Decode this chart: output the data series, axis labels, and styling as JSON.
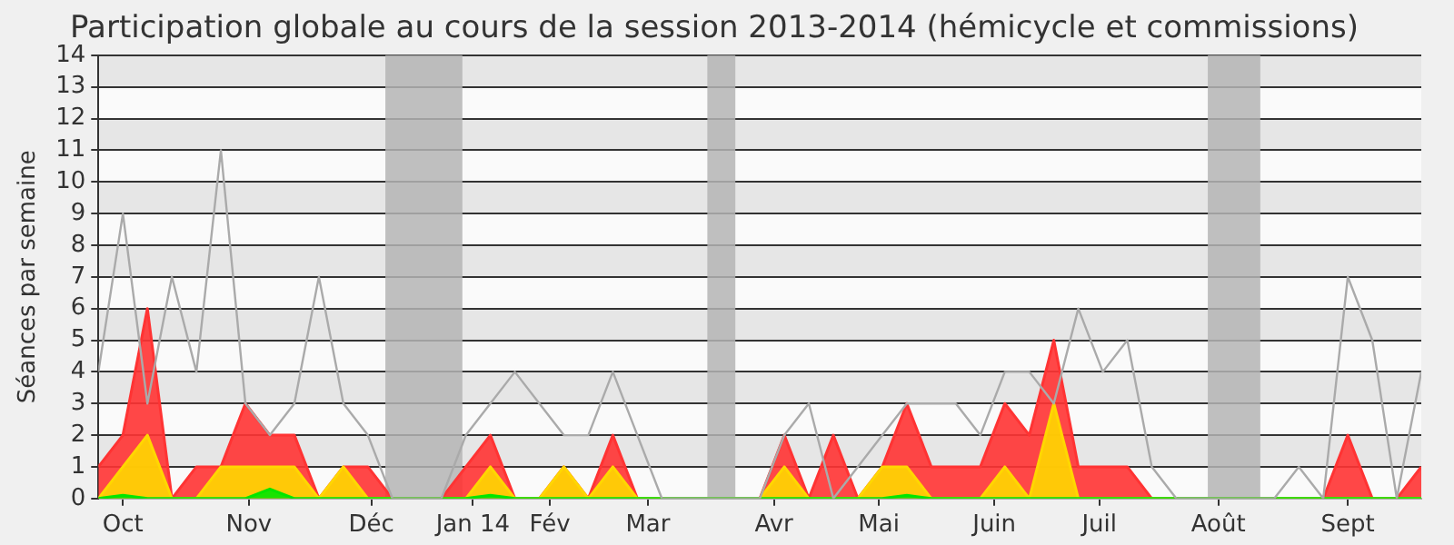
{
  "chart_data": {
    "type": "area",
    "title": "Participation globale au cours de la session 2013-2014 (hémicycle et commissions)",
    "ylabel": "Séances par semaine",
    "x": [
      "2013-09-30",
      "2013-10-07",
      "2013-10-14",
      "2013-10-21",
      "2013-10-28",
      "2013-11-04",
      "2013-11-11",
      "2013-11-18",
      "2013-11-25",
      "2013-12-02",
      "2013-12-09",
      "2013-12-16",
      "2013-12-23",
      "2013-12-30",
      "2014-01-06",
      "2014-01-13",
      "2014-01-20",
      "2014-01-27",
      "2014-02-03",
      "2014-02-10",
      "2014-02-17",
      "2014-02-24",
      "2014-03-03",
      "2014-03-10",
      "2014-03-17",
      "2014-03-24",
      "2014-03-31",
      "2014-04-07",
      "2014-04-14",
      "2014-04-21",
      "2014-04-28",
      "2014-05-05",
      "2014-05-12",
      "2014-05-19",
      "2014-05-26",
      "2014-06-02",
      "2014-06-09",
      "2014-06-16",
      "2014-06-23",
      "2014-06-30",
      "2014-07-07",
      "2014-07-14",
      "2014-07-21",
      "2014-07-28",
      "2014-08-04",
      "2014-08-11",
      "2014-08-18",
      "2014-08-25",
      "2014-09-01",
      "2014-09-08",
      "2014-09-15",
      "2014-09-22",
      "2014-09-29",
      "2014-10-06",
      "2014-10-13"
    ],
    "xlim": [
      "2013-09-30",
      "2014-10-13"
    ],
    "xticks": [
      {
        "value": "2013-10-07",
        "label": "Oct"
      },
      {
        "value": "2013-11-12",
        "label": "Nov"
      },
      {
        "value": "2013-12-17",
        "label": "Déc"
      },
      {
        "value": "2014-01-15",
        "label": "Jan 14"
      },
      {
        "value": "2014-02-06",
        "label": "Fév"
      },
      {
        "value": "2014-03-06",
        "label": "Mar"
      },
      {
        "value": "2014-04-11",
        "label": "Avr"
      },
      {
        "value": "2014-05-11",
        "label": "Mai"
      },
      {
        "value": "2014-06-13",
        "label": "Juin"
      },
      {
        "value": "2014-07-13",
        "label": "Juil"
      },
      {
        "value": "2014-08-16",
        "label": "Août"
      },
      {
        "value": "2014-09-22",
        "label": "Sept"
      }
    ],
    "ylim": [
      0,
      14
    ],
    "yticks": [
      0,
      1,
      2,
      3,
      4,
      5,
      6,
      7,
      8,
      9,
      10,
      11,
      12,
      13,
      14
    ],
    "grid": "y",
    "legend": false,
    "marker": "none",
    "bands": [
      {
        "axis": "x",
        "from": "2013-12-21",
        "to": "2014-01-12",
        "color": "#b4b4b4"
      },
      {
        "axis": "x",
        "from": "2014-03-23",
        "to": "2014-03-31",
        "color": "#b4b4b4"
      },
      {
        "axis": "x",
        "from": "2014-08-13",
        "to": "2014-08-28",
        "color": "#b4b4b4"
      }
    ],
    "series": [
      {
        "color": "#ff3333",
        "values": [
          1,
          2,
          6,
          0,
          1,
          1,
          3,
          2,
          2,
          0,
          1,
          1,
          0,
          0,
          0,
          1,
          2,
          0,
          0,
          1,
          0,
          2,
          0,
          0,
          0,
          0,
          0,
          0,
          2,
          0,
          2,
          0,
          1,
          3,
          1,
          1,
          1,
          3,
          2,
          5,
          1,
          1,
          1,
          0,
          0,
          0,
          0,
          0,
          0,
          0,
          0,
          2,
          0,
          0,
          1
        ]
      },
      {
        "color": "#ffd700",
        "values": [
          0,
          1,
          2,
          0,
          0,
          1,
          1,
          1,
          1,
          0,
          1,
          0,
          0,
          0,
          0,
          0,
          1,
          0,
          0,
          1,
          0,
          1,
          0,
          0,
          0,
          0,
          0,
          0,
          1,
          0,
          0,
          0,
          1,
          1,
          0,
          0,
          0,
          1,
          0,
          3,
          0,
          0,
          0,
          0,
          0,
          0,
          0,
          0,
          0,
          0,
          0,
          0,
          0,
          0,
          0
        ]
      },
      {
        "color": "#00e600",
        "values": [
          0,
          0.1,
          0,
          0,
          0,
          0,
          0,
          0.3,
          0,
          0,
          0,
          0,
          0,
          0,
          0,
          0,
          0.1,
          0,
          0,
          0,
          0,
          0,
          0,
          0,
          0,
          0,
          0,
          0,
          0,
          0,
          0,
          0,
          0,
          0.1,
          0,
          0,
          0,
          0,
          0,
          0,
          0,
          0,
          0,
          0,
          0,
          0,
          0,
          0,
          0,
          0,
          0,
          0,
          0,
          0,
          0
        ]
      },
      {
        "type": "line",
        "color": "#aaaaaa",
        "values": [
          4,
          9,
          3,
          7,
          4,
          11,
          3,
          2,
          3,
          7,
          3,
          2,
          0,
          0,
          0,
          2,
          3,
          4,
          3,
          2,
          2,
          4,
          2,
          0,
          0,
          0,
          0,
          0,
          2,
          3,
          0,
          1,
          2,
          3,
          3,
          3,
          2,
          4,
          4,
          3,
          6,
          4,
          5,
          1,
          0,
          0,
          0,
          0,
          0,
          1,
          0,
          7,
          5,
          0,
          4
        ]
      }
    ]
  }
}
